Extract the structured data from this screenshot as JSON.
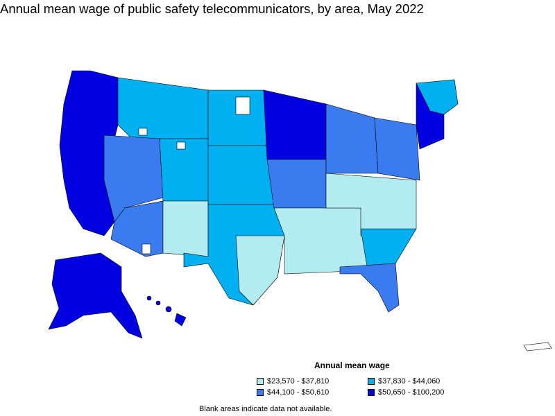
{
  "title": "Annual mean wage of public safety telecommunicators, by area, May 2022",
  "legend": {
    "title": "Annual mean wage",
    "items": [
      {
        "label": "$23,570 - $37,810",
        "color": "#b3ecf0"
      },
      {
        "label": "$37,830 - $44,060",
        "color": "#00b0f0"
      },
      {
        "label": "$44,100 - $50,610",
        "color": "#3a7bf0"
      },
      {
        "label": "$50,650 - $100,200",
        "color": "#0000e0"
      }
    ]
  },
  "note": "Blank areas indicate data not available.",
  "colors": {
    "tier1": "#b3ecf0",
    "tier2": "#00b0f0",
    "tier3": "#3a7bf0",
    "tier4": "#0000e0",
    "blank": "#ffffff",
    "border": "#000000"
  }
}
